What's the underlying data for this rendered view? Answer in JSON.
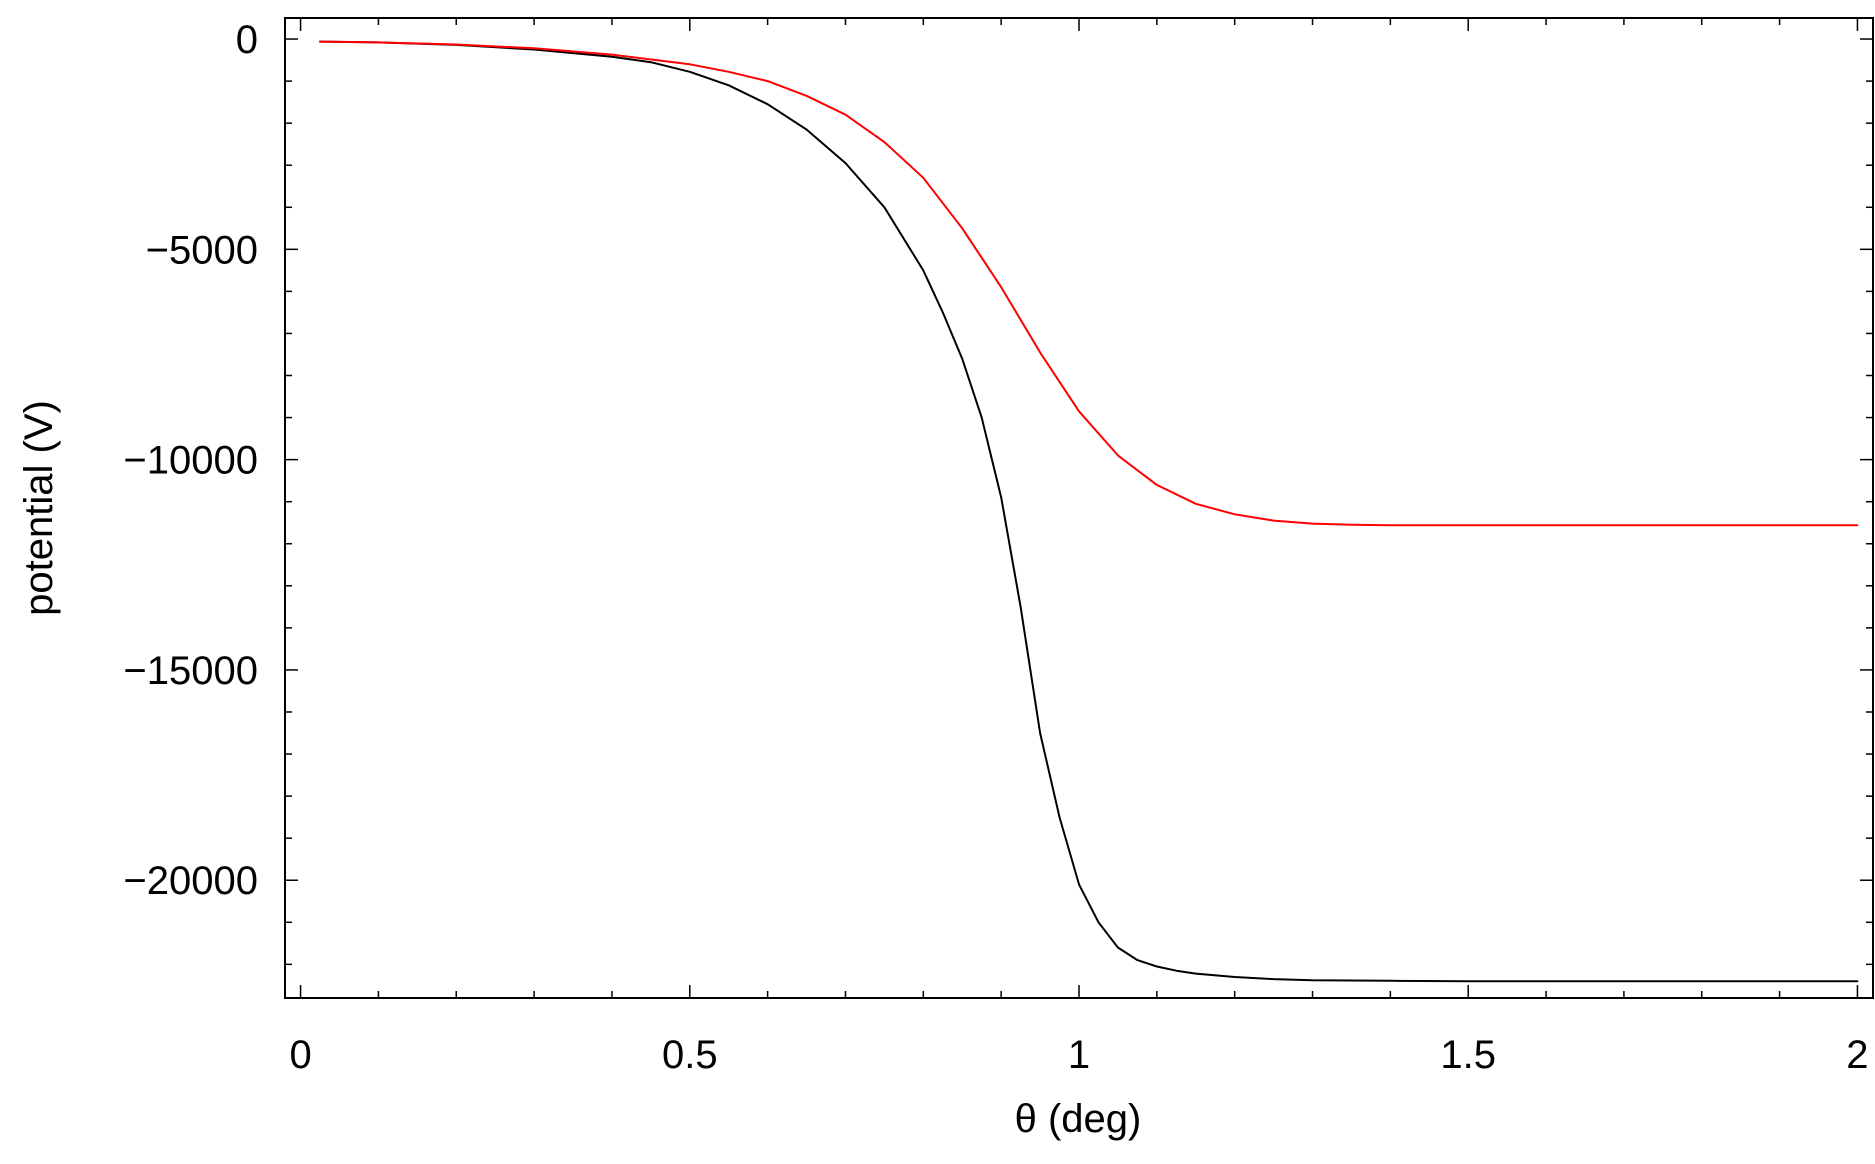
{
  "chart_data": {
    "type": "line",
    "title": "",
    "xlabel": "θ (deg)",
    "ylabel": "potential (V)",
    "xlim": [
      -0.02,
      2.02
    ],
    "ylim": [
      -22800,
      500
    ],
    "x_ticks": [
      {
        "value": 0,
        "label": "0"
      },
      {
        "value": 0.5,
        "label": "0.5"
      },
      {
        "value": 1,
        "label": "1"
      },
      {
        "value": 1.5,
        "label": "1.5"
      },
      {
        "value": 2,
        "label": "2"
      }
    ],
    "y_ticks": [
      {
        "value": 0,
        "label": "0"
      },
      {
        "value": -5000,
        "label": "−5000"
      },
      {
        "value": -10000,
        "label": "−10000"
      },
      {
        "value": -15000,
        "label": "−15000"
      },
      {
        "value": -20000,
        "label": "−20000"
      }
    ],
    "x_minor_step": 0.1,
    "y_minor_step": 1000,
    "grid": false,
    "legend": "none",
    "series": [
      {
        "color": "#000000",
        "x": [
          0.025,
          0.1,
          0.2,
          0.3,
          0.4,
          0.45,
          0.5,
          0.55,
          0.6,
          0.65,
          0.7,
          0.75,
          0.8,
          0.825,
          0.85,
          0.875,
          0.9,
          0.925,
          0.95,
          0.975,
          1.0,
          1.025,
          1.05,
          1.075,
          1.1,
          1.125,
          1.15,
          1.2,
          1.25,
          1.3,
          1.4,
          1.5,
          1.6,
          1.7,
          1.8,
          1.9,
          2.0
        ],
        "values": [
          -60,
          -80,
          -140,
          -250,
          -420,
          -550,
          -780,
          -1100,
          -1550,
          -2150,
          -2950,
          -4000,
          -5500,
          -6500,
          -7600,
          -9000,
          -10900,
          -13500,
          -16500,
          -18500,
          -20100,
          -21000,
          -21600,
          -21900,
          -22050,
          -22150,
          -22220,
          -22300,
          -22350,
          -22380,
          -22390,
          -22400,
          -22400,
          -22400,
          -22400,
          -22400,
          -22400
        ]
      },
      {
        "color": "#ff0000",
        "x": [
          0.025,
          0.1,
          0.2,
          0.3,
          0.4,
          0.5,
          0.55,
          0.6,
          0.65,
          0.7,
          0.75,
          0.8,
          0.85,
          0.9,
          0.95,
          1.0,
          1.05,
          1.1,
          1.15,
          1.2,
          1.25,
          1.3,
          1.35,
          1.4,
          1.5,
          1.6,
          1.7,
          1.8,
          1.9,
          2.0
        ],
        "values": [
          -60,
          -80,
          -130,
          -220,
          -370,
          -600,
          -780,
          -1000,
          -1350,
          -1800,
          -2450,
          -3300,
          -4500,
          -5900,
          -7450,
          -8850,
          -9900,
          -10600,
          -11050,
          -11300,
          -11450,
          -11520,
          -11550,
          -11560,
          -11560,
          -11560,
          -11560,
          -11560,
          -11560,
          -11560
        ]
      }
    ]
  }
}
